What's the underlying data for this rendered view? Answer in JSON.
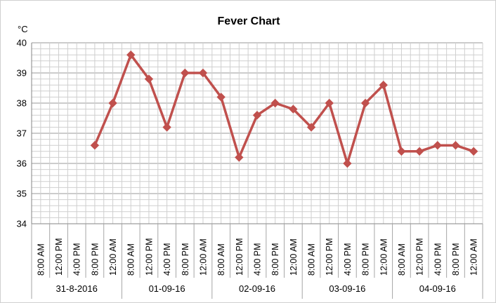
{
  "chart_data": {
    "type": "line",
    "title": "Fever Chart",
    "ylabel": "°C",
    "xlabel": "",
    "ylim": [
      34,
      40
    ],
    "yticks": [
      34,
      35,
      36,
      37,
      38,
      39,
      40
    ],
    "grid": true,
    "legend": "none",
    "line_color": "#c0504d",
    "categories": [
      "8:00 AM",
      "12:00 PM",
      "4:00 PM",
      "8:00 PM",
      "12:00 AM",
      "8:00 AM",
      "12:00 PM",
      "4:00 PM",
      "8:00 PM",
      "12:00 AM",
      "8:00 AM",
      "12:00 PM",
      "4:00 PM",
      "8:00 PM",
      "12:00 AM",
      "8:00 AM",
      "12:00 PM",
      "4:00 PM",
      "8:00 PM",
      "12:00 AM",
      "8:00 AM",
      "12:00 PM",
      "4:00 PM",
      "8:00 PM",
      "12:00 AM"
    ],
    "groups": [
      {
        "label": "31-8-2016",
        "size": 5
      },
      {
        "label": "01-09-16",
        "size": 5
      },
      {
        "label": "02-09-16",
        "size": 5
      },
      {
        "label": "03-09-16",
        "size": 5
      },
      {
        "label": "04-09-16",
        "size": 5
      }
    ],
    "series": [
      {
        "values": [
          null,
          null,
          null,
          36.6,
          38.0,
          39.6,
          38.8,
          37.2,
          39.0,
          39.0,
          38.2,
          36.2,
          37.6,
          38.0,
          37.8,
          37.2,
          38.0,
          36.0,
          38.0,
          38.6,
          36.4,
          36.4,
          36.6,
          36.6,
          36.4
        ]
      }
    ]
  }
}
